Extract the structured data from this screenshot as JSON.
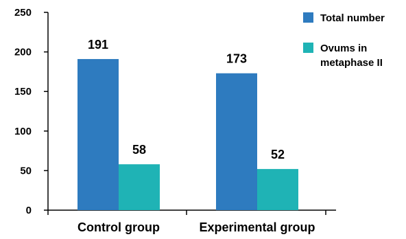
{
  "chart_data": {
    "type": "bar",
    "categories": [
      "Control group",
      "Experimental group"
    ],
    "series": [
      {
        "name": "Total number",
        "values": [
          191,
          173
        ],
        "color": "#2e7bbf"
      },
      {
        "name": "Ovums in metaphase II",
        "legend_lines": [
          "Ovums in",
          "metaphase II"
        ],
        "values": [
          58,
          52
        ],
        "color": "#1fb3b5"
      }
    ],
    "data_labels": [
      [
        "191",
        "173"
      ],
      [
        "58",
        "52"
      ]
    ],
    "ylim": [
      0,
      250
    ],
    "yticks": [
      0,
      50,
      100,
      150,
      200,
      250
    ],
    "ytick_labels": [
      "0",
      "50",
      "100",
      "150",
      "200",
      "250"
    ],
    "grid": false,
    "legend_position": "top-right",
    "title": "",
    "xlabel": "",
    "ylabel": ""
  }
}
